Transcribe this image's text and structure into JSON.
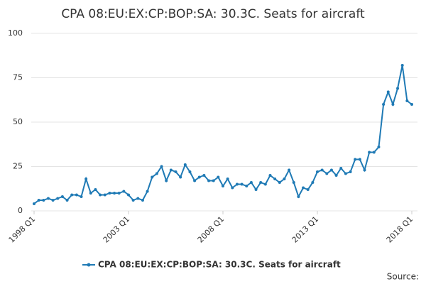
{
  "chart_data": {
    "type": "line",
    "title": "CPA 08:EU:EX:CP:BOP:SA: 30.3C. Seats for aircraft",
    "categories": [
      "1998 Q1",
      null,
      null,
      null,
      null,
      null,
      null,
      null,
      null,
      null,
      null,
      null,
      null,
      null,
      null,
      null,
      null,
      null,
      null,
      null,
      "2003 Q1",
      null,
      null,
      null,
      null,
      null,
      null,
      null,
      null,
      null,
      null,
      null,
      null,
      null,
      null,
      null,
      null,
      null,
      null,
      null,
      "2008 Q1",
      null,
      null,
      null,
      null,
      null,
      null,
      null,
      null,
      null,
      null,
      null,
      null,
      null,
      null,
      null,
      null,
      null,
      null,
      null,
      "2013 Q1",
      null,
      null,
      null,
      null,
      null,
      null,
      null,
      null,
      null,
      null,
      null,
      null,
      null,
      null,
      null,
      null,
      null,
      null,
      null,
      "2018 Q1"
    ],
    "series": [
      {
        "name": "CPA 08:EU:EX:CP:BOP:SA: 30.3C. Seats for aircraft",
        "color": "#1f7ab5",
        "values": [
          4,
          6,
          6,
          7,
          6,
          7,
          8,
          6,
          9,
          9,
          8,
          18,
          10,
          12,
          9,
          9,
          10,
          10,
          10,
          11,
          9,
          6,
          7,
          6,
          11,
          19,
          21,
          25,
          17,
          23,
          22,
          19,
          26,
          22,
          17,
          19,
          20,
          17,
          17,
          19,
          14,
          18,
          13,
          15,
          15,
          14,
          16,
          12,
          16,
          15,
          20,
          18,
          16,
          18,
          23,
          16,
          8,
          13,
          12,
          16,
          22,
          23,
          21,
          23,
          20,
          24,
          21,
          22,
          29,
          29,
          23,
          33,
          33,
          36,
          60,
          67,
          60,
          69,
          82,
          62,
          60
        ]
      }
    ],
    "ylim": [
      0,
      100
    ],
    "yticks": [
      0,
      25,
      50,
      75,
      100
    ],
    "grid": true,
    "source": "Source:"
  }
}
